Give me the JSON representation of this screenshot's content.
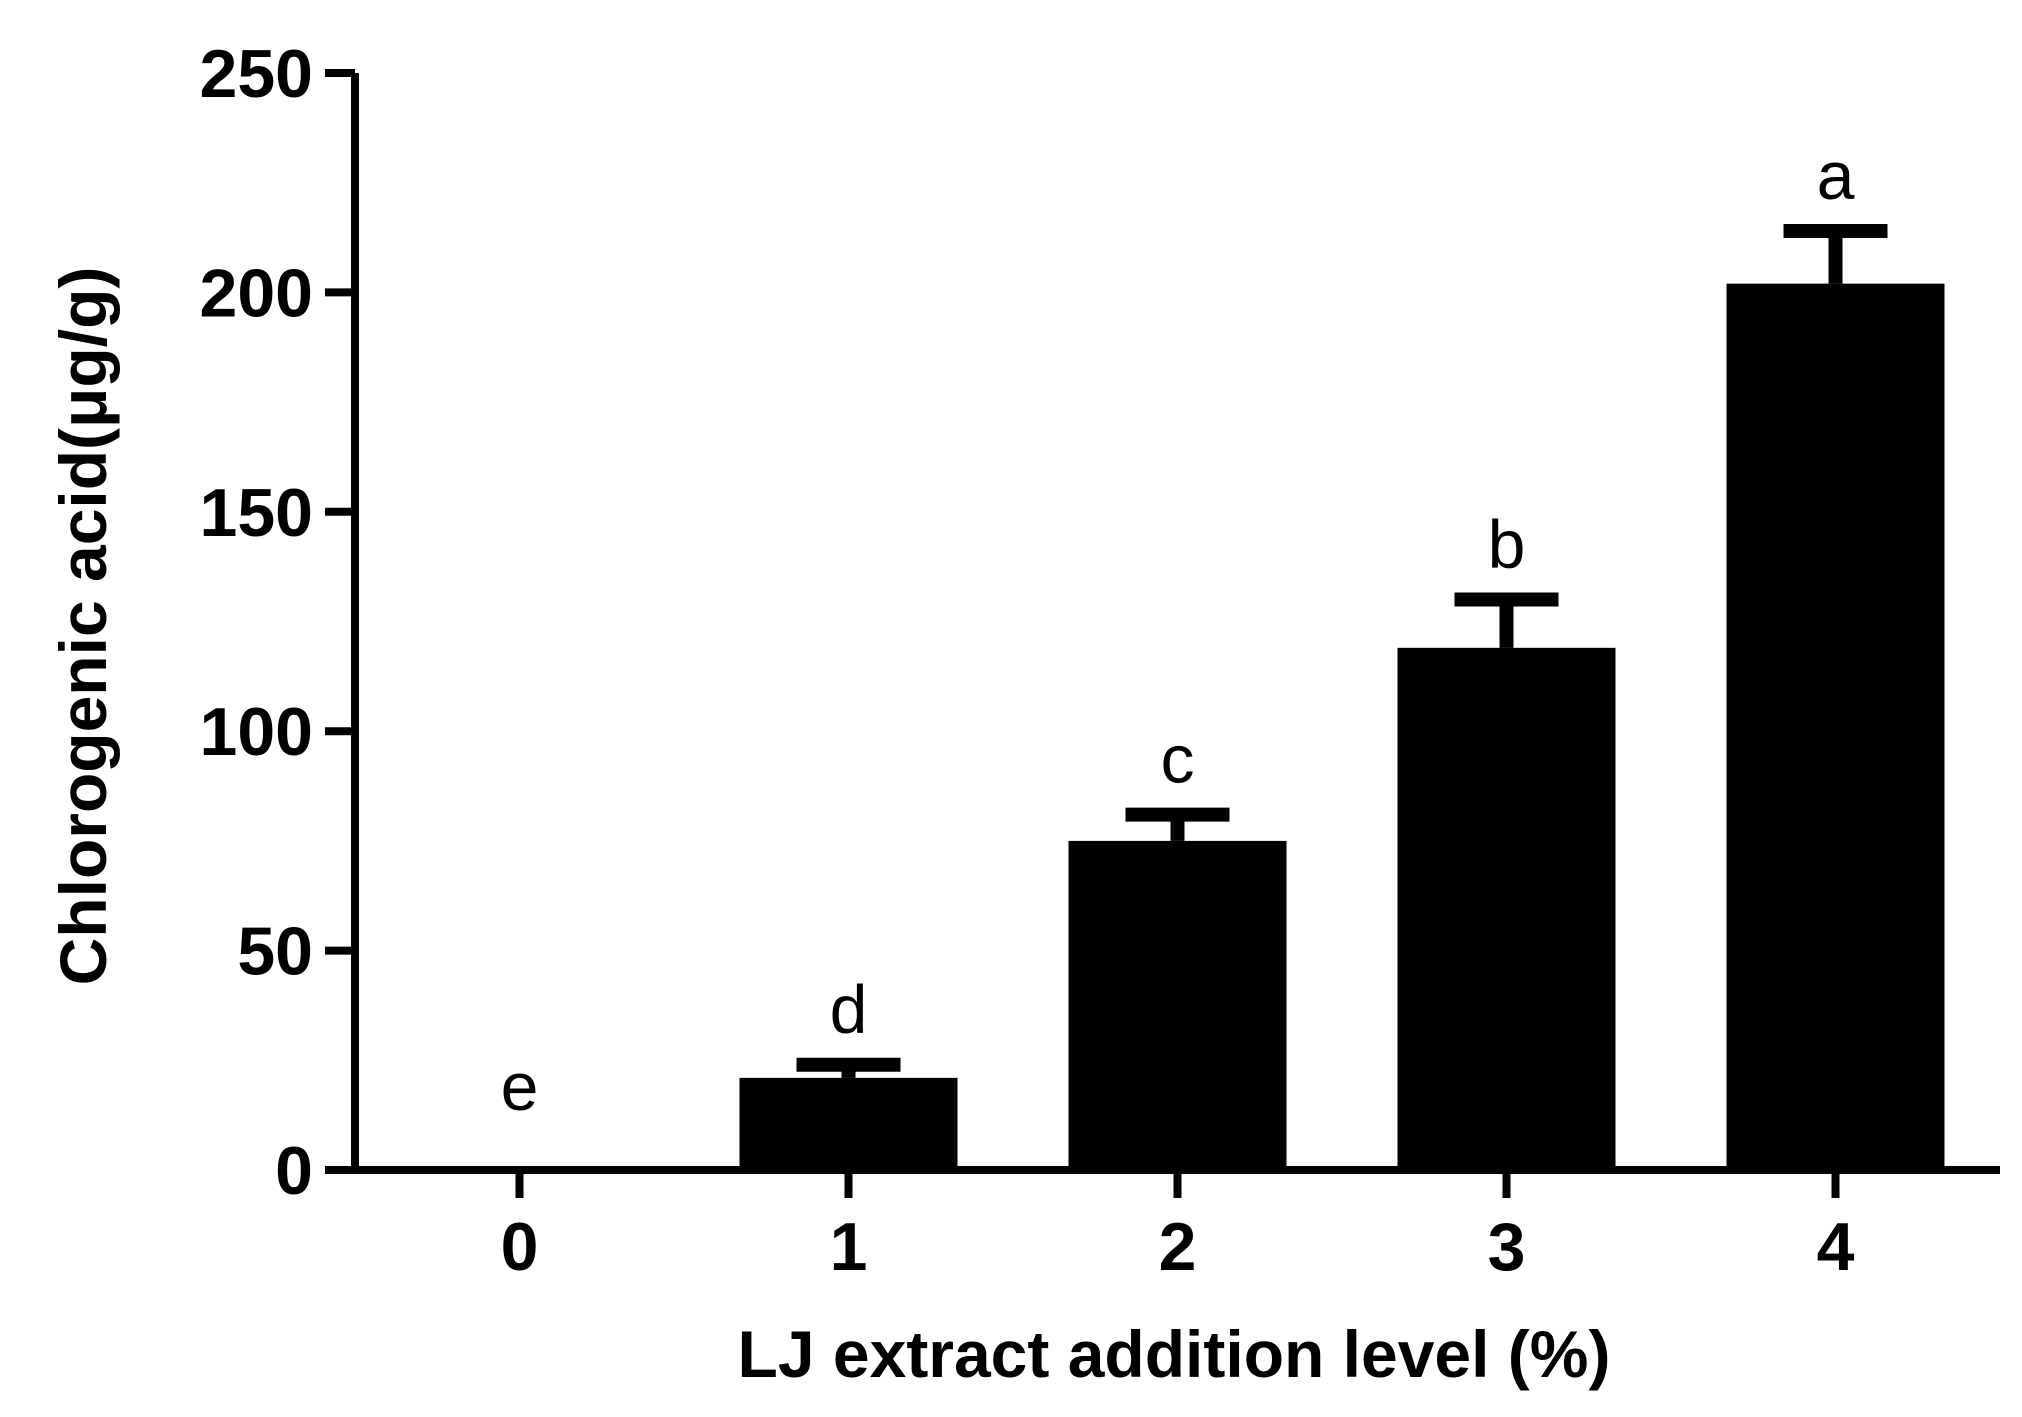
{
  "chart_data": {
    "type": "bar",
    "title": "",
    "xlabel": "LJ extract addition level (%)",
    "ylabel": "Chlorogenic acid(μg/g)",
    "categories": [
      "0",
      "1",
      "2",
      "3",
      "4"
    ],
    "series": [
      {
        "values": [
          0,
          21,
          75,
          119,
          202
        ],
        "errors": [
          0,
          3,
          6,
          11,
          12
        ],
        "significance": [
          "e",
          "d",
          "c",
          "b",
          "a"
        ]
      }
    ],
    "ylim": [
      0,
      250
    ],
    "yticks": [
      "0",
      "50",
      "100",
      "150",
      "200",
      "250"
    ],
    "grid": false,
    "legend": "none",
    "bar_color": "#000000",
    "axis_color": "#000000"
  }
}
